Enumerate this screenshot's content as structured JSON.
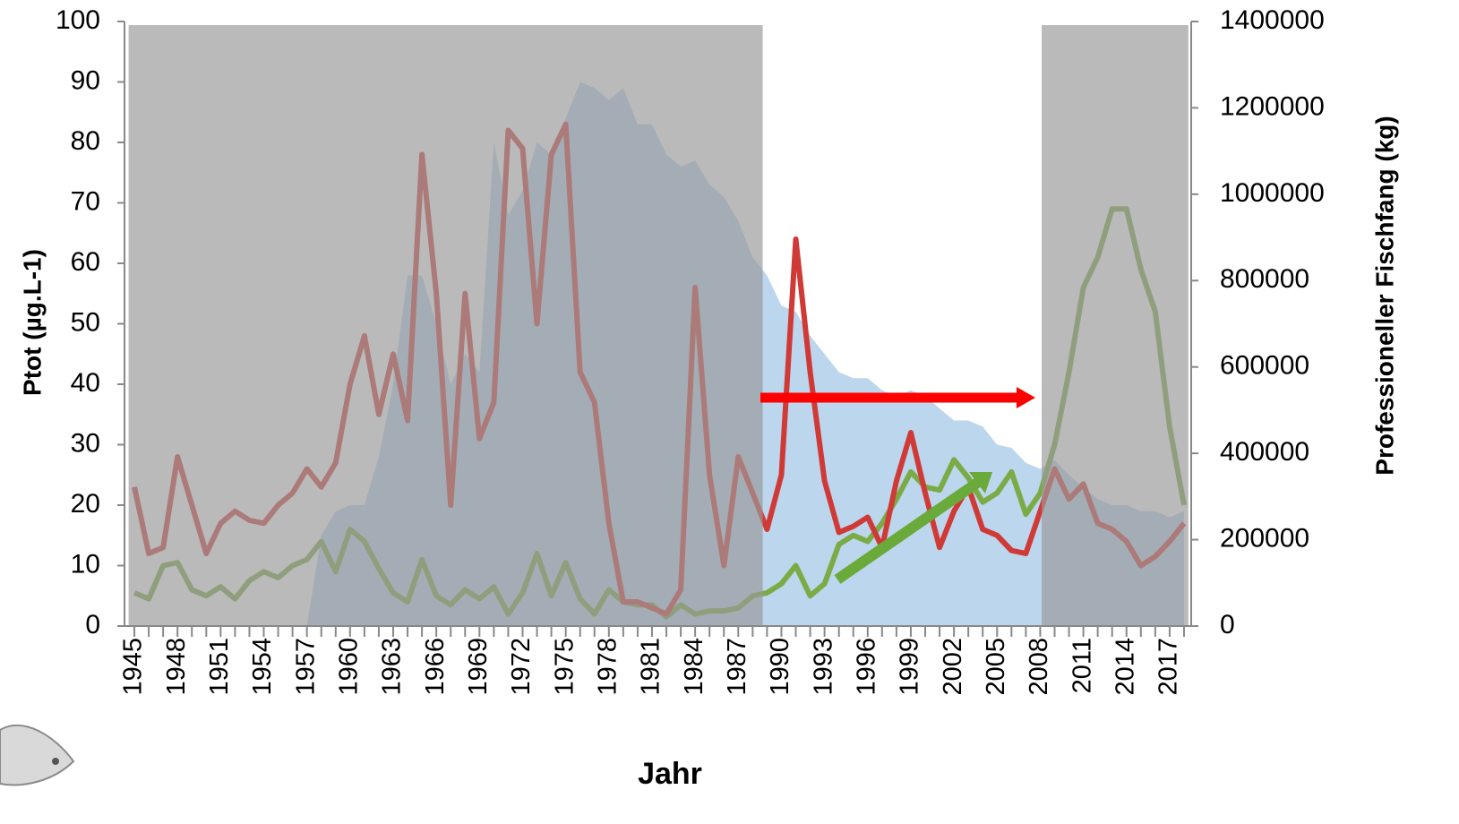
{
  "chart_data": {
    "type": "combo",
    "x_label": "Jahr",
    "y_label": "Ptot (µg.L-1)",
    "y2_label": "Professioneller Fischfang (kg)",
    "x": [
      1945,
      1946,
      1947,
      1948,
      1949,
      1950,
      1951,
      1952,
      1953,
      1954,
      1955,
      1956,
      1957,
      1958,
      1959,
      1960,
      1961,
      1962,
      1963,
      1964,
      1965,
      1966,
      1967,
      1968,
      1969,
      1970,
      1971,
      1972,
      1973,
      1974,
      1975,
      1976,
      1977,
      1978,
      1979,
      1980,
      1981,
      1982,
      1983,
      1984,
      1985,
      1986,
      1987,
      1988,
      1989,
      1990,
      1991,
      1992,
      1993,
      1994,
      1995,
      1996,
      1997,
      1998,
      1999,
      2000,
      2001,
      2002,
      2003,
      2004,
      2005,
      2006,
      2007,
      2008,
      2009,
      2010,
      2011,
      2012,
      2013,
      2014,
      2015,
      2016,
      2017,
      2018
    ],
    "xlim": [
      1944.5,
      2018.5
    ],
    "xticks": [
      1945,
      1948,
      1951,
      1954,
      1957,
      1960,
      1963,
      1966,
      1969,
      1972,
      1975,
      1978,
      1981,
      1984,
      1987,
      1990,
      1993,
      1996,
      1999,
      2002,
      2005,
      2008,
      2011,
      2014,
      2017
    ],
    "ylim": [
      0,
      100
    ],
    "yticks": [
      0,
      10,
      20,
      30,
      40,
      50,
      60,
      70,
      80,
      90,
      100
    ],
    "y2lim": [
      0,
      1400000
    ],
    "y2ticks": [
      0,
      200000,
      400000,
      600000,
      800000,
      1000000,
      1200000,
      1400000
    ],
    "series": [
      {
        "type": "area",
        "color": "#bcd6ee",
        "values": [
          null,
          null,
          null,
          null,
          null,
          null,
          null,
          null,
          null,
          null,
          null,
          null,
          0,
          15,
          19,
          20,
          20,
          28,
          40,
          58,
          58,
          50,
          40,
          45,
          42,
          80,
          68,
          72,
          80,
          78,
          84,
          90,
          89,
          87,
          89,
          83,
          83,
          78,
          76,
          77,
          73,
          71,
          67,
          61,
          58,
          53,
          52,
          48,
          45,
          42,
          41,
          41,
          39,
          38,
          39,
          38,
          36,
          34,
          34,
          33,
          30,
          29.5,
          27,
          26,
          27.5,
          25,
          23,
          21,
          20,
          20,
          19,
          19,
          18,
          19
        ]
      },
      {
        "type": "line",
        "axis": "y2",
        "color": "#7aab45",
        "values": [
          77000,
          63000,
          140000,
          147000,
          84000,
          70000,
          91000,
          63000,
          105000,
          126000,
          112000,
          140000,
          154000,
          196000,
          126000,
          224000,
          196000,
          133000,
          77000,
          56000,
          154000,
          70000,
          49000,
          84000,
          63000,
          91000,
          28000,
          77000,
          168000,
          70000,
          147000,
          63000,
          28000,
          84000,
          56000,
          49000,
          49000,
          21000,
          49000,
          28000,
          35000,
          35000,
          42000,
          70000,
          77000,
          98000,
          140000,
          70000,
          98000,
          189000,
          210000,
          196000,
          238000,
          294000,
          357000,
          322000,
          315000,
          385000,
          343000,
          287000,
          308000,
          357000,
          259000,
          308000,
          420000,
          588000,
          784000,
          854000,
          966000,
          966000,
          826000,
          728000,
          462000,
          280000
        ]
      },
      {
        "type": "line",
        "axis": "y2",
        "color": "#d03a36",
        "values": [
          322000,
          168000,
          182000,
          392000,
          280000,
          168000,
          238000,
          266000,
          245000,
          238000,
          280000,
          308000,
          364000,
          322000,
          378000,
          560000,
          672000,
          490000,
          630000,
          476000,
          1092000,
          770000,
          280000,
          770000,
          434000,
          518000,
          1148000,
          1106000,
          700000,
          1092000,
          1162000,
          588000,
          518000,
          238000,
          56000,
          56000,
          42000,
          28000,
          84000,
          784000,
          350000,
          140000,
          392000,
          308000,
          224000,
          350000,
          896000,
          588000,
          336000,
          217000,
          231000,
          252000,
          182000,
          336000,
          448000,
          308000,
          182000,
          266000,
          322000,
          224000,
          210000,
          175000,
          168000,
          266000,
          364000,
          294000,
          329000,
          238000,
          224000,
          196000,
          140000,
          161000,
          196000,
          238000
        ]
      }
    ],
    "shade_color": "#9a9a9a",
    "shaded_regions": [
      {
        "x": [
          1944.6,
          1988.7
        ],
        "y": [
          0,
          99.4
        ]
      },
      {
        "x": [
          2008.1,
          2018.3
        ],
        "y": [
          0,
          99.4
        ]
      }
    ]
  }
}
